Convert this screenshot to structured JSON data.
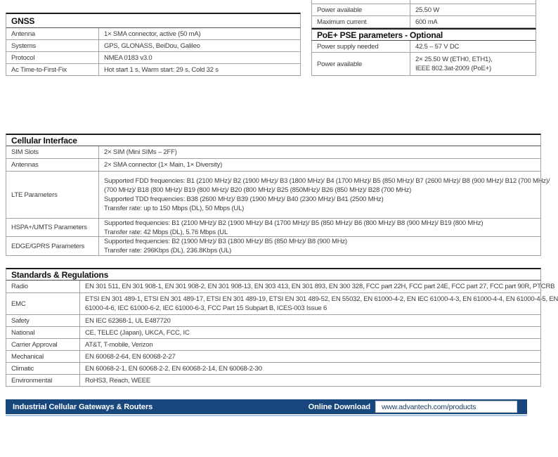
{
  "colors": {
    "banner_bar": "#17477d",
    "banner_accent_line": "#a9c6e3",
    "table_border": "#a3a3a3",
    "header_rule": "#1b1b1b"
  },
  "tables": {
    "gnss": {
      "title": "GNSS",
      "rows": [
        {
          "label": "Antenna",
          "value": "1× SMA connector, active (50 mA)"
        },
        {
          "label": "Systems",
          "value": "GPS, GLONASS, BeiDou, Galileo"
        },
        {
          "label": "Protocol",
          "value": "NMEA 0183 v3.0"
        },
        {
          "label": "Ac Time-to-First-Fix",
          "value": "Hot start 1 s, Warm start: 29 s, Cold 32 s"
        }
      ]
    },
    "power": {
      "rows": [
        {
          "label": "Power available",
          "value": "25.50 W"
        },
        {
          "label": "Maximum current",
          "value": "600 mA"
        }
      ]
    },
    "poe": {
      "title": "PoE+ PSE parameters - Optional",
      "rows": [
        {
          "label": "Power supply needed",
          "value": "42.5 – 57 V DC"
        },
        {
          "label": "Power available",
          "lines": [
            "2× 25.50 W (ETH0, ETH1),",
            "IEEE 802.3at-2009 (PoE+)"
          ]
        }
      ]
    },
    "cellular": {
      "title": "Cellular Interface",
      "rows": [
        {
          "label": "SIM Slots",
          "value": "2× SIM (Mini SIMs – 2FF)"
        },
        {
          "label": "Antennas",
          "value": "2× SMA connector (1× Main, 1× Diversity)"
        },
        {
          "label": "LTE Parameters",
          "lines": [
            "Supported FDD frequencies: B1 (2100 MHz)/ B2 (1900 MHz)/ B3 (1800 MHz)/ B4 (1700 MHz)/ B5 (850 MHz)/ B7 (2600 MHz)/ B8 (900 MHz)/ B12 (700 MHz)/",
            "(700 MHz)/ B18 (800 MHz)/ B19 (800 MHz)/ B20 (800 MHz)/ B25 (850MHz)/ B26 (850 MHz)/ B28 (700 MHz)",
            "Supported TDD frequencies: B38 (2600 MHz)/ B39 (1900 MHz)/ B40 (2300 MHz)/ B41 (2500 MHz)",
            "Transfer rate: up to 150 Mbps (DL), 50 Mbps (UL)"
          ]
        },
        {
          "label": "HSPA+/UMTS Parameters",
          "lines": [
            "Supported frequencies: B1 (2100 MHz)/ B2 (1900 MHz)/ B4 (1700 MHz)/ B5 (850 MHz)/ B6 (800 MHz)/ B8 (900 MHz)/ B19 (800 MHz)",
            "Transfer rate: 42 Mbps (DL), 5.76 Mbps (UL"
          ]
        },
        {
          "label": "EDGE/GPRS Parameters",
          "lines": [
            "Supported frequencies: B2 (1900 MHz)/ B3 (1800 MHz)/ B5 (850 MHz)/ B8 (900 MHz)",
            "Transfer rate: 296Kbps (DL), 236.8Kbps (UL)"
          ]
        }
      ]
    },
    "standards": {
      "title": "Standards & Regulations",
      "rows": [
        {
          "label": "Radio",
          "value": "EN 301 511, EN 301 908-1, EN 301 908-2, EN 301 908-13, EN 303 413, EN 301 893, EN 300 328, FCC part 22H, FCC part 24E, FCC part 27, FCC part 90R, PTCRB"
        },
        {
          "label": "EMC",
          "lines": [
            "ETSI EN 301 489-1, ETSI EN 301 489-17, ETSI EN 301 489-19, ETSI EN 301 489-52, EN 55032, EN 61000-4-2, EN IEC 61000-4-3, EN 61000-4-4, EN 61000-4-5, EN",
            "61000-4-6, IEC 61000-6-2, IEC 61000-6-3, FCC Part 15 Subpart B, ICES-003 Issue 6"
          ]
        },
        {
          "label": "Safety",
          "value": "EN IEC 62368-1, UL E487720"
        },
        {
          "label": "National",
          "value": "CE, TELEC (Japan), UKCA, FCC, IC"
        },
        {
          "label": "Carrier Approval",
          "value": "AT&T, T-mobile, Verizon"
        },
        {
          "label": "Mechanical",
          "value": "EN 60068-2-64, EN 60068-2-27"
        },
        {
          "label": "Climatic",
          "value": "EN 60068-2-1, EN 60068-2-2, EN 60068-2-14, EN 60068-2-30"
        },
        {
          "label": "Environmental",
          "value": "RoHS3, Reach, WEEE"
        }
      ]
    }
  },
  "banner": {
    "title": "Industrial Cellular Gateways & Routers",
    "download_label": "Online Download",
    "url": "www.advantech.com/products"
  }
}
